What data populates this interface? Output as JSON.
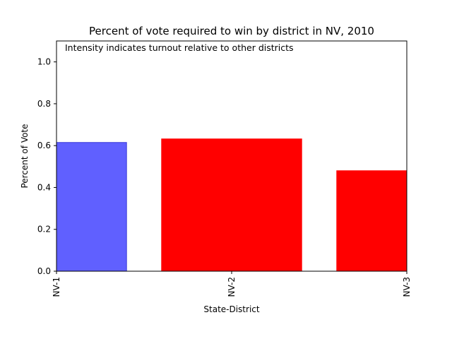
{
  "chart_data": {
    "type": "bar",
    "title": "Percent of vote required to win by district in NV, 2010",
    "xlabel": "State-District",
    "ylabel": "Percent of Vote",
    "annotation": "Intensity indicates turnout relative to other districts",
    "categories": [
      "NV-1",
      "NV-2",
      "NV-3"
    ],
    "values": [
      0.615,
      0.632,
      0.48
    ],
    "colors": [
      "#6060ff",
      "#ff0000",
      "#ff0000"
    ],
    "ylim": [
      0,
      1.1
    ],
    "yticks": [
      "0.0",
      "0.2",
      "0.4",
      "0.6",
      "0.8",
      "1.0"
    ],
    "grid": false,
    "legend": "none"
  }
}
